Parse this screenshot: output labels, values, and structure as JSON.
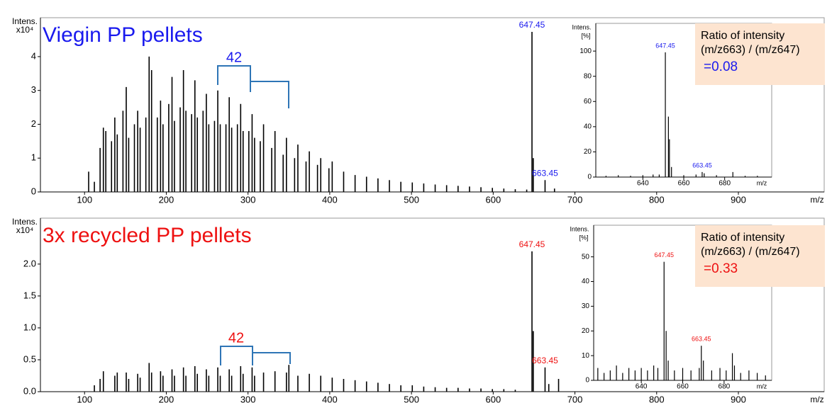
{
  "chart_data": [
    {
      "type": "spectrum",
      "title": "Viegin PP pellets",
      "title_color": "#1a1aee",
      "color": "#000000",
      "y_label": "Intens.",
      "y_unit": "x10⁴",
      "x_label": "m/z",
      "xlim": [
        46,
        1005
      ],
      "ylim": [
        0,
        5.15
      ],
      "xticks": [
        100,
        200,
        300,
        400,
        500,
        600,
        700,
        800,
        900
      ],
      "yticks": [
        0,
        1,
        2,
        3,
        4
      ],
      "x": [
        105,
        112,
        119,
        123,
        126,
        133,
        137,
        140,
        147,
        151,
        154,
        161,
        165,
        168,
        175,
        179,
        182,
        189,
        193,
        196,
        203,
        207,
        210,
        217,
        221,
        224,
        231,
        235,
        238,
        245,
        249,
        252,
        259,
        263,
        266,
        273,
        277,
        280,
        287,
        291,
        294,
        301,
        305,
        308,
        315,
        319,
        329,
        333,
        343,
        347,
        357,
        361,
        371,
        375,
        385,
        389,
        399,
        403,
        417,
        431,
        445,
        459,
        473,
        487,
        501,
        515,
        529,
        543,
        557,
        571,
        585,
        599,
        613,
        627,
        641,
        647.45,
        649,
        663.45,
        675
      ],
      "values": [
        0.6,
        0.3,
        1.3,
        1.9,
        1.8,
        1.5,
        2.2,
        1.7,
        2.4,
        3.1,
        1.6,
        2.0,
        2.4,
        1.9,
        2.2,
        4.0,
        3.6,
        2.2,
        2.7,
        2.0,
        2.6,
        3.4,
        2.1,
        2.5,
        3.6,
        2.4,
        2.3,
        3.3,
        2.2,
        2.4,
        2.9,
        2.0,
        2.1,
        3.0,
        2.0,
        2.0,
        2.8,
        1.9,
        2.0,
        2.6,
        1.8,
        1.8,
        2.3,
        1.6,
        1.5,
        2.0,
        1.3,
        1.8,
        1.1,
        1.6,
        1.0,
        1.4,
        0.9,
        1.2,
        0.8,
        1.0,
        0.7,
        0.9,
        0.6,
        0.5,
        0.45,
        0.4,
        0.35,
        0.3,
        0.28,
        0.25,
        0.22,
        0.2,
        0.18,
        0.16,
        0.14,
        0.12,
        0.1,
        0.08,
        0.07,
        4.73,
        1.0,
        0.35,
        0.1
      ],
      "annotation_color": "#1a1aee",
      "annotations": [
        {
          "text": "647.45",
          "x": 647.45,
          "y": 4.73
        },
        {
          "text": "663.45",
          "x": 663.45,
          "y": 0.35
        }
      ],
      "bracket_label": "42"
    },
    {
      "type": "spectrum",
      "color": "#000000",
      "y_label": "Intens.",
      "y_unit": "[%]",
      "x_label": "m/z",
      "xlim": [
        617,
        703
      ],
      "ylim": [
        0,
        122
      ],
      "xticks": [
        640,
        660,
        680
      ],
      "yticks": [
        0,
        20,
        40,
        60,
        80,
        100
      ],
      "x": [
        622,
        628,
        634,
        640,
        645,
        648,
        651,
        652.5,
        653,
        654,
        660,
        666,
        669,
        670,
        676,
        684,
        690,
        696
      ],
      "values": [
        1,
        1.5,
        1,
        1.5,
        2,
        2,
        99,
        48,
        30,
        8,
        1.5,
        2,
        4,
        3,
        1.5,
        4,
        1,
        1
      ],
      "annotation_color": "#1a1aee",
      "annotations": [
        {
          "text": "647.45",
          "x": 651,
          "y": 99
        },
        {
          "text": "663.45",
          "x": 669,
          "y": 4
        }
      ],
      "note_lines": [
        "Ratio of intensity",
        "(m/z663) / (m/z647)"
      ],
      "ratio": "=0.08",
      "note_fill": "#fde4d0"
    },
    {
      "type": "spectrum",
      "title": "3x recycled PP pellets",
      "title_color": "#ee1111",
      "color": "#000000",
      "y_label": "Intens.",
      "y_unit": "x10⁴",
      "x_label": "m/z",
      "xlim": [
        46,
        1005
      ],
      "ylim": [
        0,
        2.72
      ],
      "xticks": [
        100,
        200,
        300,
        400,
        500,
        600,
        700,
        800,
        900
      ],
      "yticks": [
        {
          "value": 0,
          "label": "0.0"
        },
        0.5,
        {
          "value": 1,
          "label": "1.0"
        },
        1.5,
        {
          "value": 2,
          "label": "2.0"
        }
      ],
      "x": [
        112,
        119,
        123,
        137,
        140,
        151,
        154,
        165,
        168,
        179,
        182,
        193,
        196,
        207,
        210,
        221,
        224,
        235,
        238,
        249,
        252,
        263,
        266,
        277,
        280,
        291,
        294,
        305,
        308,
        319,
        333,
        347,
        350,
        361,
        375,
        389,
        403,
        417,
        431,
        445,
        459,
        473,
        487,
        501,
        515,
        529,
        543,
        557,
        571,
        585,
        599,
        613,
        627,
        647.45,
        649,
        663.45,
        668,
        680
      ],
      "values": [
        0.1,
        0.2,
        0.32,
        0.25,
        0.3,
        0.3,
        0.2,
        0.28,
        0.22,
        0.45,
        0.3,
        0.32,
        0.25,
        0.35,
        0.25,
        0.38,
        0.25,
        0.4,
        0.28,
        0.35,
        0.25,
        0.38,
        0.25,
        0.35,
        0.25,
        0.4,
        0.28,
        0.38,
        0.25,
        0.3,
        0.32,
        0.3,
        0.42,
        0.25,
        0.28,
        0.25,
        0.22,
        0.2,
        0.18,
        0.16,
        0.14,
        0.12,
        0.1,
        0.1,
        0.08,
        0.07,
        0.06,
        0.06,
        0.05,
        0.05,
        0.04,
        0.04,
        0.03,
        2.2,
        0.95,
        0.38,
        0.12,
        0.2
      ],
      "annotation_color": "#ee1111",
      "annotations": [
        {
          "text": "647.45",
          "x": 647.45,
          "y": 2.2
        },
        {
          "text": "663.45",
          "x": 663.45,
          "y": 0.38
        }
      ],
      "bracket_label": "42"
    },
    {
      "type": "spectrum",
      "color": "#000000",
      "y_label": "Intens.",
      "y_unit": "[%]",
      "x_label": "m/z",
      "xlim": [
        617,
        703
      ],
      "ylim": [
        0,
        62.8
      ],
      "xticks": [
        640,
        660,
        680
      ],
      "yticks": [
        0,
        10,
        20,
        30,
        40,
        50
      ],
      "x": [
        619,
        622,
        625,
        628,
        631,
        634,
        637,
        640,
        643,
        646,
        648,
        651,
        652,
        653,
        656,
        660,
        664,
        668,
        669,
        670,
        674,
        678,
        681,
        684,
        685,
        688,
        692,
        696,
        700
      ],
      "values": [
        5,
        3,
        4,
        6,
        3,
        5,
        4,
        5,
        4,
        6,
        5,
        48,
        20,
        8,
        4,
        5,
        4,
        5,
        14,
        8,
        4,
        5,
        4,
        11,
        6,
        3,
        4,
        3,
        2
      ],
      "annotation_color": "#ee1111",
      "annotations": [
        {
          "text": "647.45",
          "x": 651,
          "y": 48
        },
        {
          "text": "663.45",
          "x": 669,
          "y": 14
        }
      ],
      "note_lines": [
        "Ratio of intensity",
        "(m/z663) / (m/z647)"
      ],
      "ratio": "=0.33",
      "note_fill": "#fde4d0"
    }
  ]
}
